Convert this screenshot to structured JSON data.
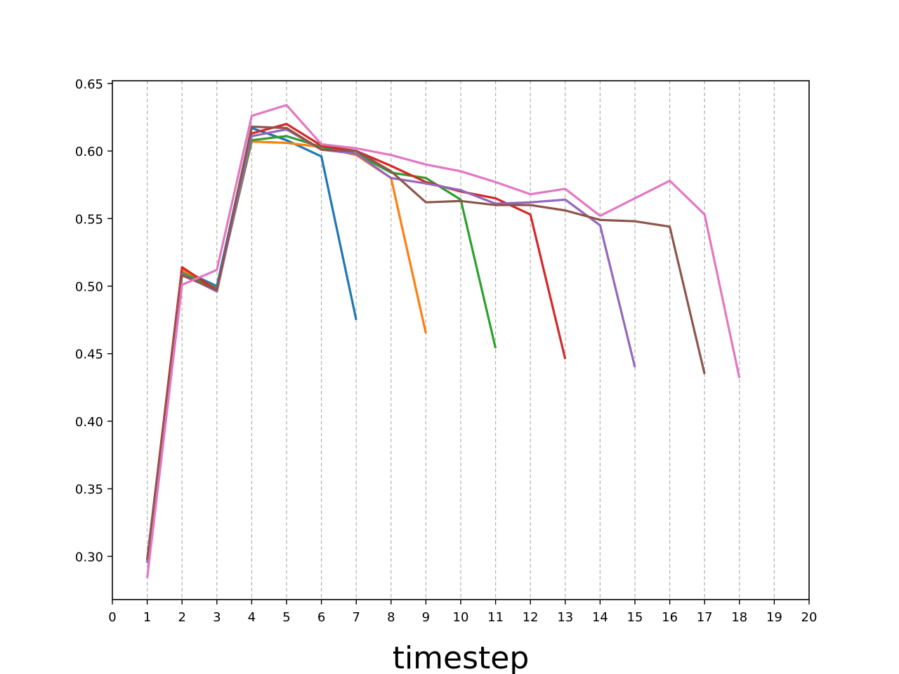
{
  "chart_data": {
    "type": "line",
    "title": "",
    "xlabel": "timestep",
    "ylabel": "",
    "xlim": [
      0,
      20
    ],
    "ylim": [
      0.268,
      0.652
    ],
    "xticks": [
      0,
      1,
      2,
      3,
      4,
      5,
      6,
      7,
      8,
      9,
      10,
      11,
      12,
      13,
      14,
      15,
      16,
      17,
      18,
      19,
      20
    ],
    "yticks": [
      0.3,
      0.35,
      0.4,
      0.45,
      0.5,
      0.55,
      0.6,
      0.65
    ],
    "ytick_labels": [
      "0.30",
      "0.35",
      "0.40",
      "0.45",
      "0.50",
      "0.55",
      "0.60",
      "0.65"
    ],
    "grid": "vertical dashed lines at integer x from 1 to 19",
    "series": [
      {
        "color": "#1f77b4",
        "x": [
          1,
          2,
          3,
          4,
          5,
          6,
          7
        ],
        "y": [
          0.297,
          0.512,
          0.5,
          0.617,
          0.608,
          0.596,
          0.475
        ]
      },
      {
        "color": "#ff7f0e",
        "x": [
          1,
          2,
          3,
          4,
          5,
          6,
          7,
          8,
          9
        ],
        "y": [
          0.297,
          0.512,
          0.498,
          0.607,
          0.606,
          0.603,
          0.597,
          0.58,
          0.465
        ]
      },
      {
        "color": "#2ca02c",
        "x": [
          1,
          2,
          3,
          4,
          5,
          6,
          7,
          8,
          9,
          10,
          11
        ],
        "y": [
          0.297,
          0.51,
          0.498,
          0.608,
          0.611,
          0.603,
          0.598,
          0.584,
          0.58,
          0.564,
          0.454
        ]
      },
      {
        "color": "#d62728",
        "x": [
          1,
          2,
          3,
          4,
          5,
          6,
          7,
          8,
          9,
          10,
          11,
          12,
          13
        ],
        "y": [
          0.297,
          0.514,
          0.497,
          0.613,
          0.62,
          0.604,
          0.6,
          0.589,
          0.577,
          0.57,
          0.565,
          0.553,
          0.446
        ]
      },
      {
        "color": "#9467bd",
        "x": [
          1,
          2,
          3,
          4,
          5,
          6,
          7,
          8,
          9,
          10,
          11,
          12,
          13,
          14,
          15
        ],
        "y": [
          0.295,
          0.509,
          0.496,
          0.611,
          0.616,
          0.601,
          0.598,
          0.58,
          0.576,
          0.571,
          0.561,
          0.562,
          0.564,
          0.545,
          0.44
        ]
      },
      {
        "color": "#8c564b",
        "x": [
          1,
          2,
          3,
          4,
          5,
          6,
          7,
          8,
          9,
          10,
          11,
          12,
          13,
          14,
          15,
          16,
          17
        ],
        "y": [
          0.298,
          0.508,
          0.497,
          0.618,
          0.617,
          0.601,
          0.6,
          0.585,
          0.562,
          0.563,
          0.56,
          0.56,
          0.556,
          0.549,
          0.548,
          0.544,
          0.435
        ]
      },
      {
        "color": "#e377c2",
        "x": [
          1,
          2,
          3,
          4,
          5,
          6,
          7,
          8,
          9,
          10,
          11,
          12,
          13,
          14,
          15,
          16,
          17,
          18
        ],
        "y": [
          0.284,
          0.501,
          0.512,
          0.626,
          0.634,
          0.605,
          0.602,
          0.597,
          0.59,
          0.585,
          0.577,
          0.568,
          0.572,
          0.552,
          0.565,
          0.578,
          0.553,
          0.432
        ]
      }
    ]
  }
}
